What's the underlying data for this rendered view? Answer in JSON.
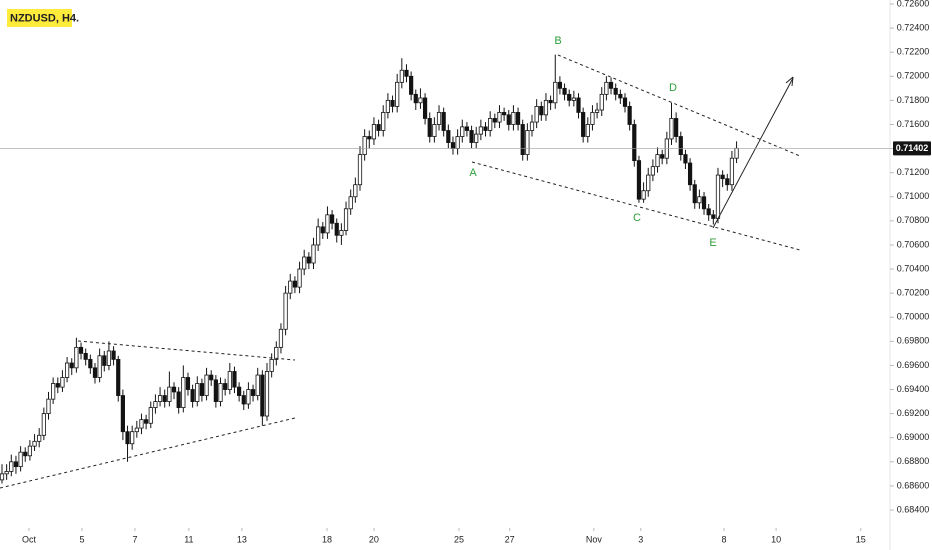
{
  "chart_data": {
    "type": "candlestick",
    "title": "NZDUSD, H4.",
    "candles": [
      [
        0.6865,
        0.6878,
        0.6862,
        0.687
      ],
      [
        0.687,
        0.6878,
        0.6865,
        0.6872
      ],
      [
        0.6872,
        0.6886,
        0.6868,
        0.688
      ],
      [
        0.688,
        0.6885,
        0.687,
        0.6876
      ],
      [
        0.6876,
        0.6893,
        0.6872,
        0.6888
      ],
      [
        0.6888,
        0.6892,
        0.688,
        0.6885
      ],
      [
        0.6885,
        0.6898,
        0.6881,
        0.6893
      ],
      [
        0.6893,
        0.6903,
        0.6889,
        0.6897
      ],
      [
        0.6897,
        0.6908,
        0.6892,
        0.6902
      ],
      [
        0.6902,
        0.6925,
        0.6898,
        0.692
      ],
      [
        0.692,
        0.6938,
        0.6915,
        0.6932
      ],
      [
        0.6932,
        0.695,
        0.6928,
        0.6945
      ],
      [
        0.6945,
        0.695,
        0.6937,
        0.6942
      ],
      [
        0.6942,
        0.6956,
        0.6938,
        0.695
      ],
      [
        0.695,
        0.6967,
        0.6946,
        0.6962
      ],
      [
        0.6962,
        0.6966,
        0.6952,
        0.6958
      ],
      [
        0.6958,
        0.6983,
        0.6954,
        0.6975
      ],
      [
        0.6975,
        0.6979,
        0.6965,
        0.697
      ],
      [
        0.697,
        0.6974,
        0.696,
        0.6965
      ],
      [
        0.6965,
        0.6969,
        0.6953,
        0.6958
      ],
      [
        0.6958,
        0.6962,
        0.6945,
        0.695
      ],
      [
        0.695,
        0.6974,
        0.6946,
        0.6968
      ],
      [
        0.6968,
        0.6972,
        0.6955,
        0.696
      ],
      [
        0.696,
        0.698,
        0.6956,
        0.6972
      ],
      [
        0.6972,
        0.6976,
        0.696,
        0.6965
      ],
      [
        0.6965,
        0.6968,
        0.693,
        0.6935
      ],
      [
        0.6935,
        0.694,
        0.6898,
        0.6905
      ],
      [
        0.6905,
        0.691,
        0.688,
        0.6895
      ],
      [
        0.6895,
        0.691,
        0.689,
        0.6905
      ],
      [
        0.6905,
        0.6914,
        0.69,
        0.6908
      ],
      [
        0.6908,
        0.692,
        0.6903,
        0.6915
      ],
      [
        0.6915,
        0.6919,
        0.6907,
        0.6912
      ],
      [
        0.6912,
        0.693,
        0.6908,
        0.6925
      ],
      [
        0.6925,
        0.6936,
        0.692,
        0.693
      ],
      [
        0.693,
        0.6942,
        0.6926,
        0.6935
      ],
      [
        0.6935,
        0.694,
        0.6925,
        0.693
      ],
      [
        0.693,
        0.6955,
        0.6926,
        0.6942
      ],
      [
        0.6942,
        0.6946,
        0.6932,
        0.6938
      ],
      [
        0.6938,
        0.6942,
        0.692,
        0.6925
      ],
      [
        0.6925,
        0.696,
        0.6921,
        0.695
      ],
      [
        0.695,
        0.6954,
        0.6935,
        0.694
      ],
      [
        0.694,
        0.6944,
        0.6925,
        0.693
      ],
      [
        0.693,
        0.6951,
        0.6926,
        0.6945
      ],
      [
        0.6945,
        0.6949,
        0.693,
        0.6935
      ],
      [
        0.6935,
        0.6958,
        0.6931,
        0.6952
      ],
      [
        0.6952,
        0.6956,
        0.6943,
        0.6948
      ],
      [
        0.6948,
        0.6952,
        0.6925,
        0.693
      ],
      [
        0.693,
        0.695,
        0.6926,
        0.6945
      ],
      [
        0.6945,
        0.6949,
        0.6935,
        0.694
      ],
      [
        0.694,
        0.6962,
        0.6936,
        0.6955
      ],
      [
        0.6955,
        0.6959,
        0.6937,
        0.6942
      ],
      [
        0.6942,
        0.6946,
        0.693,
        0.6935
      ],
      [
        0.6935,
        0.6939,
        0.6923,
        0.6928
      ],
      [
        0.6928,
        0.6946,
        0.6924,
        0.694
      ],
      [
        0.694,
        0.6944,
        0.693,
        0.6935
      ],
      [
        0.6935,
        0.6958,
        0.6931,
        0.6952
      ],
      [
        0.6952,
        0.6956,
        0.691,
        0.6918
      ],
      [
        0.6918,
        0.6962,
        0.6914,
        0.6955
      ],
      [
        0.6955,
        0.697,
        0.695,
        0.6965
      ],
      [
        0.6965,
        0.698,
        0.696,
        0.6975
      ],
      [
        0.6975,
        0.6995,
        0.697,
        0.699
      ],
      [
        0.699,
        0.7026,
        0.6985,
        0.702
      ],
      [
        0.702,
        0.7036,
        0.7015,
        0.703
      ],
      [
        0.703,
        0.7034,
        0.702,
        0.7025
      ],
      [
        0.7025,
        0.7046,
        0.702,
        0.704
      ],
      [
        0.704,
        0.7056,
        0.7035,
        0.705
      ],
      [
        0.705,
        0.7054,
        0.704,
        0.7045
      ],
      [
        0.7045,
        0.7066,
        0.704,
        0.706
      ],
      [
        0.706,
        0.7082,
        0.7055,
        0.7075
      ],
      [
        0.7075,
        0.7079,
        0.7065,
        0.707
      ],
      [
        0.707,
        0.7092,
        0.7065,
        0.7085
      ],
      [
        0.7085,
        0.7089,
        0.7073,
        0.7078
      ],
      [
        0.7078,
        0.7082,
        0.7062,
        0.7068
      ],
      [
        0.7068,
        0.7078,
        0.706,
        0.7072
      ],
      [
        0.7072,
        0.7096,
        0.7068,
        0.709
      ],
      [
        0.709,
        0.7106,
        0.7085,
        0.71
      ],
      [
        0.71,
        0.7116,
        0.7095,
        0.711
      ],
      [
        0.711,
        0.7142,
        0.7105,
        0.7135
      ],
      [
        0.7135,
        0.7156,
        0.713,
        0.715
      ],
      [
        0.715,
        0.7155,
        0.714,
        0.7148
      ],
      [
        0.7148,
        0.7166,
        0.7143,
        0.716
      ],
      [
        0.716,
        0.7164,
        0.715,
        0.7155
      ],
      [
        0.7155,
        0.7176,
        0.715,
        0.717
      ],
      [
        0.717,
        0.7186,
        0.7165,
        0.718
      ],
      [
        0.718,
        0.7184,
        0.717,
        0.7175
      ],
      [
        0.7175,
        0.7202,
        0.717,
        0.7195
      ],
      [
        0.7195,
        0.7215,
        0.719,
        0.7205
      ],
      [
        0.7205,
        0.721,
        0.7195,
        0.72
      ],
      [
        0.72,
        0.7204,
        0.718,
        0.7185
      ],
      [
        0.7185,
        0.7189,
        0.7172,
        0.7178
      ],
      [
        0.7178,
        0.719,
        0.7173,
        0.7182
      ],
      [
        0.7182,
        0.7186,
        0.716,
        0.7165
      ],
      [
        0.7165,
        0.717,
        0.7145,
        0.715
      ],
      [
        0.715,
        0.7166,
        0.7145,
        0.716
      ],
      [
        0.716,
        0.7176,
        0.7155,
        0.717
      ],
      [
        0.717,
        0.7174,
        0.715,
        0.7155
      ],
      [
        0.7155,
        0.716,
        0.714,
        0.7145
      ],
      [
        0.7145,
        0.715,
        0.7135,
        0.714
      ],
      [
        0.714,
        0.7156,
        0.7135,
        0.715
      ],
      [
        0.715,
        0.7164,
        0.7145,
        0.7158
      ],
      [
        0.7158,
        0.7162,
        0.715,
        0.7155
      ],
      [
        0.7155,
        0.7159,
        0.714,
        0.7145
      ],
      [
        0.7145,
        0.7158,
        0.714,
        0.7152
      ],
      [
        0.7152,
        0.7164,
        0.7147,
        0.7158
      ],
      [
        0.7158,
        0.7162,
        0.715,
        0.7155
      ],
      [
        0.7155,
        0.7171,
        0.715,
        0.7165
      ],
      [
        0.7165,
        0.7169,
        0.7157,
        0.7162
      ],
      [
        0.7162,
        0.7176,
        0.7157,
        0.717
      ],
      [
        0.717,
        0.7174,
        0.7163,
        0.7168
      ],
      [
        0.7168,
        0.7172,
        0.7155,
        0.716
      ],
      [
        0.716,
        0.7176,
        0.7155,
        0.717
      ],
      [
        0.717,
        0.7174,
        0.7155,
        0.716
      ],
      [
        0.716,
        0.7164,
        0.713,
        0.7135
      ],
      [
        0.7135,
        0.7161,
        0.713,
        0.7155
      ],
      [
        0.7155,
        0.7168,
        0.715,
        0.7162
      ],
      [
        0.7162,
        0.7181,
        0.7157,
        0.7175
      ],
      [
        0.7175,
        0.7179,
        0.7163,
        0.7168
      ],
      [
        0.7168,
        0.7186,
        0.7163,
        0.718
      ],
      [
        0.718,
        0.7184,
        0.7172,
        0.7178
      ],
      [
        0.7178,
        0.7218,
        0.7173,
        0.7195
      ],
      [
        0.7195,
        0.72,
        0.7185,
        0.719
      ],
      [
        0.719,
        0.7194,
        0.718,
        0.7185
      ],
      [
        0.7185,
        0.7189,
        0.7175,
        0.718
      ],
      [
        0.718,
        0.7188,
        0.7175,
        0.7182
      ],
      [
        0.7182,
        0.7186,
        0.7165,
        0.717
      ],
      [
        0.717,
        0.7174,
        0.7145,
        0.715
      ],
      [
        0.715,
        0.7166,
        0.7145,
        0.716
      ],
      [
        0.716,
        0.7176,
        0.7155,
        0.717
      ],
      [
        0.717,
        0.7178,
        0.7165,
        0.7172
      ],
      [
        0.7172,
        0.7191,
        0.7167,
        0.7185
      ],
      [
        0.7185,
        0.72,
        0.718,
        0.7195
      ],
      [
        0.7195,
        0.7199,
        0.7185,
        0.719
      ],
      [
        0.719,
        0.7194,
        0.718,
        0.7185
      ],
      [
        0.7185,
        0.7189,
        0.7177,
        0.7182
      ],
      [
        0.7182,
        0.7186,
        0.717,
        0.7175
      ],
      [
        0.7175,
        0.7179,
        0.7155,
        0.716
      ],
      [
        0.716,
        0.7164,
        0.7125,
        0.713
      ],
      [
        0.713,
        0.7134,
        0.7095,
        0.7098
      ],
      [
        0.7098,
        0.7112,
        0.7095,
        0.7105
      ],
      [
        0.7105,
        0.7124,
        0.71,
        0.7118
      ],
      [
        0.7118,
        0.7131,
        0.7113,
        0.7125
      ],
      [
        0.7125,
        0.7141,
        0.712,
        0.7135
      ],
      [
        0.7135,
        0.7139,
        0.7127,
        0.7132
      ],
      [
        0.7132,
        0.7154,
        0.7127,
        0.7148
      ],
      [
        0.7148,
        0.7178,
        0.7143,
        0.7165
      ],
      [
        0.7165,
        0.717,
        0.7145,
        0.715
      ],
      [
        0.715,
        0.7154,
        0.713,
        0.7135
      ],
      [
        0.7135,
        0.7139,
        0.7123,
        0.7128
      ],
      [
        0.7128,
        0.7132,
        0.7105,
        0.711
      ],
      [
        0.711,
        0.7114,
        0.709,
        0.7095
      ],
      [
        0.7095,
        0.7106,
        0.709,
        0.71
      ],
      [
        0.71,
        0.7104,
        0.7085,
        0.709
      ],
      [
        0.709,
        0.7094,
        0.708,
        0.7085
      ],
      [
        0.7085,
        0.7089,
        0.7077,
        0.7082
      ],
      [
        0.7082,
        0.7124,
        0.7078,
        0.7118
      ],
      [
        0.7118,
        0.7122,
        0.7108,
        0.7115
      ],
      [
        0.7115,
        0.7119,
        0.7105,
        0.711
      ],
      [
        0.711,
        0.7138,
        0.7105,
        0.7132
      ],
      [
        0.7132,
        0.7146,
        0.7128,
        0.71402
      ]
    ],
    "up_color": "#ffffff",
    "down_color": "#131313",
    "ylim": [
      0.684,
      0.726
    ],
    "yticks": [
      {
        "value": 0.726,
        "label": "0.72600"
      },
      {
        "value": 0.724,
        "label": "0.72400"
      },
      {
        "value": 0.722,
        "label": "0.72200"
      },
      {
        "value": 0.72,
        "label": "0.72000"
      },
      {
        "value": 0.718,
        "label": "0.71800"
      },
      {
        "value": 0.716,
        "label": "0.71600"
      },
      {
        "value": 0.714,
        "label": "0.71400"
      },
      {
        "value": 0.712,
        "label": "0.71200"
      },
      {
        "value": 0.71,
        "label": "0.71000"
      },
      {
        "value": 0.708,
        "label": "0.70800"
      },
      {
        "value": 0.706,
        "label": "0.70600"
      },
      {
        "value": 0.704,
        "label": "0.70400"
      },
      {
        "value": 0.702,
        "label": "0.70200"
      },
      {
        "value": 0.7,
        "label": "0.70000"
      },
      {
        "value": 0.698,
        "label": "0.69800"
      },
      {
        "value": 0.696,
        "label": "0.69600"
      },
      {
        "value": 0.694,
        "label": "0.69400"
      },
      {
        "value": 0.692,
        "label": "0.69200"
      },
      {
        "value": 0.69,
        "label": "0.69000"
      },
      {
        "value": 0.688,
        "label": "0.68800"
      },
      {
        "value": 0.686,
        "label": "0.68600"
      },
      {
        "value": 0.684,
        "label": "0.68400"
      }
    ],
    "xlim": [
      -0.43,
      191
    ],
    "xticks": [
      {
        "value": 5.8,
        "label": "Oct"
      },
      {
        "value": 17.2,
        "label": "5"
      },
      {
        "value": 28.6,
        "label": "7"
      },
      {
        "value": 40.2,
        "label": "11"
      },
      {
        "value": 51.6,
        "label": "13"
      },
      {
        "value": 69.9,
        "label": "18"
      },
      {
        "value": 80,
        "label": "20"
      },
      {
        "value": 98.3,
        "label": "25"
      },
      {
        "value": 109.2,
        "label": "27"
      },
      {
        "value": 127.3,
        "label": "Nov"
      },
      {
        "value": 137.4,
        "label": "3"
      },
      {
        "value": 155.3,
        "label": "8"
      },
      {
        "value": 166.5,
        "label": "10"
      },
      {
        "value": 184.7,
        "label": "15"
      }
    ],
    "last_price": {
      "value": 0.71402,
      "label": "0.71402"
    },
    "annotations": [
      "A",
      "B",
      "C",
      "D",
      "E"
    ]
  }
}
